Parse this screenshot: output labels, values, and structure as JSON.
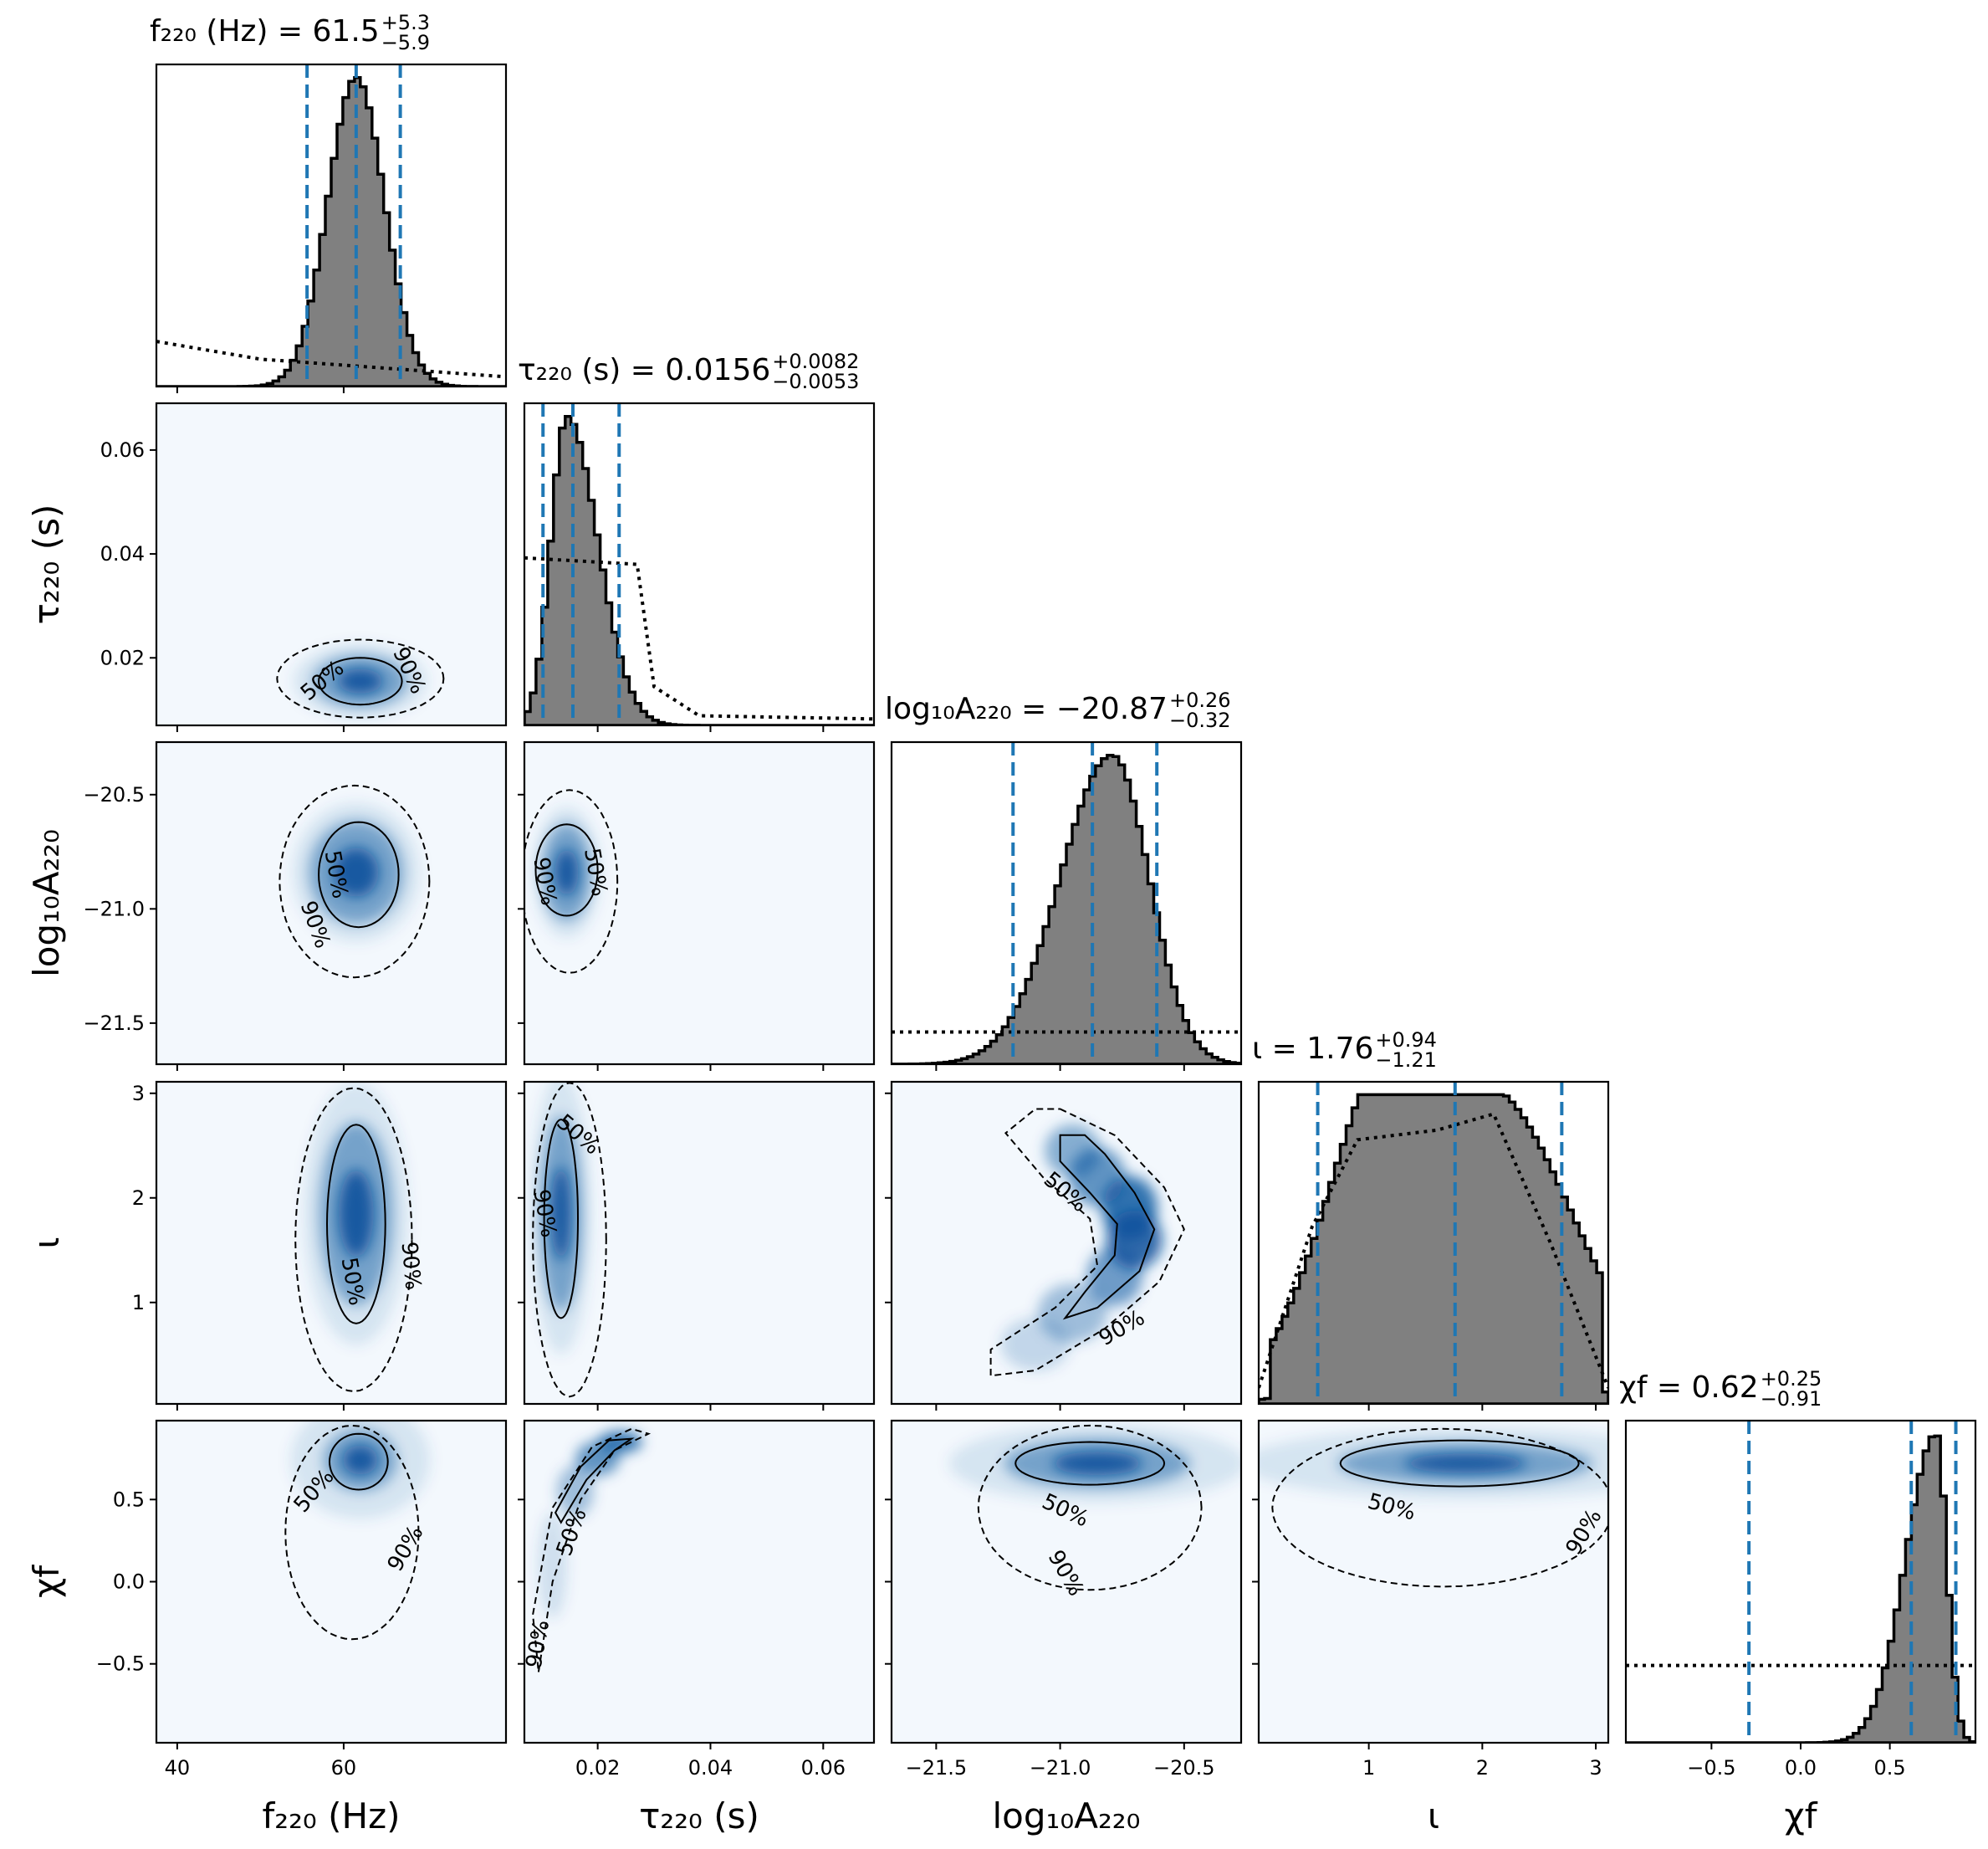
{
  "chart_data": {
    "type": "corner",
    "parameters": [
      {
        "key": "f220",
        "label": "f₂₂₀ (Hz)",
        "range": [
          37.5,
          79.5
        ],
        "ticks": [
          40,
          60
        ],
        "tick_labels": [
          "40",
          "60"
        ],
        "title": {
          "lhs": "f₂₂₀ (Hz) = 61.5",
          "sup": "+5.3",
          "sub": "−5.9"
        },
        "median": 61.5,
        "lower": 55.6,
        "upper": 66.8
      },
      {
        "key": "tau220",
        "label": "τ₂₂₀ (s)",
        "range": [
          0.007,
          0.069
        ],
        "ticks": [
          0.02,
          0.04,
          0.06
        ],
        "tick_labels": [
          "0.02",
          "0.04",
          "0.06"
        ],
        "title": {
          "lhs": "τ₂₂₀ (s) = 0.0156",
          "sup": "+0.0082",
          "sub": "−0.0053"
        },
        "median": 0.0156,
        "lower": 0.0103,
        "upper": 0.0238
      },
      {
        "key": "logA220",
        "label": "log₁₀A₂₂₀",
        "range": [
          -21.68,
          -20.27
        ],
        "ticks": [
          -21.5,
          -21.0,
          -20.5
        ],
        "tick_labels": [
          "−21.5",
          "−21.0",
          "−20.5"
        ],
        "title": {
          "lhs": "log₁₀A₂₂₀ = −20.87",
          "sup": "+0.26",
          "sub": "−0.32"
        },
        "median": -20.87,
        "lower": -21.19,
        "upper": -20.61
      },
      {
        "key": "iota",
        "label": "ι",
        "range": [
          0.03,
          3.11
        ],
        "ticks": [
          1,
          2,
          3
        ],
        "tick_labels": [
          "1",
          "2",
          "3"
        ],
        "title": {
          "lhs": "ι = 1.76",
          "sup": "+0.94",
          "sub": "−1.21"
        },
        "median": 1.76,
        "lower": 0.55,
        "upper": 2.7
      },
      {
        "key": "chif",
        "label": "χf",
        "range": [
          -0.98,
          0.98
        ],
        "ticks": [
          -0.5,
          0.0,
          0.5
        ],
        "tick_labels": [
          "−0.5",
          "0.0",
          "0.5"
        ],
        "title": {
          "lhs": "χf = 0.62",
          "sup": "+0.25",
          "sub": "−0.91"
        },
        "median": 0.62,
        "lower": -0.29,
        "upper": 0.87
      }
    ],
    "diagonal": [
      {
        "posterior": {
          "mean": 61.5,
          "sd": 3.4
        },
        "prior_line": [
          [
            37.5,
            0.14
          ],
          [
            50,
            0.085
          ],
          [
            79.5,
            0.03
          ]
        ]
      },
      {
        "posterior": {
          "mode": 0.0145,
          "sd_left": 0.0028,
          "sd_right": 0.0055
        },
        "prior_line": [
          [
            0.007,
            0.52
          ],
          [
            0.027,
            0.5
          ],
          [
            0.03,
            0.12
          ],
          [
            0.038,
            0.03
          ],
          [
            0.069,
            0.02
          ]
        ]
      },
      {
        "posterior": {
          "mode": -20.79,
          "sd_left": 0.21,
          "sd_right": 0.15
        },
        "prior_line": [
          [
            -21.68,
            0.1
          ],
          [
            -20.27,
            0.1
          ]
        ]
      },
      {
        "posterior": {
          "shape": "broad",
          "peak": 2.1
        },
        "prior_line": [
          [
            0.03,
            0.05
          ],
          [
            0.5,
            0.55
          ],
          [
            0.9,
            0.82
          ],
          [
            1.6,
            0.85
          ],
          [
            2.1,
            0.9
          ],
          [
            2.6,
            0.5
          ],
          [
            3.11,
            0.05
          ]
        ]
      },
      {
        "posterior": {
          "mode": 0.76,
          "sd_left": 0.17,
          "sd_right": 0.06
        },
        "prior_line": [
          [
            -0.98,
            0.24
          ],
          [
            0.98,
            0.24
          ]
        ]
      }
    ],
    "contour_levels": [
      "50%",
      "90%"
    ],
    "colors": {
      "density": "#08519c",
      "hist_fill": "#808080",
      "median_lines": "#1f77b4",
      "contour": "#000000"
    }
  }
}
